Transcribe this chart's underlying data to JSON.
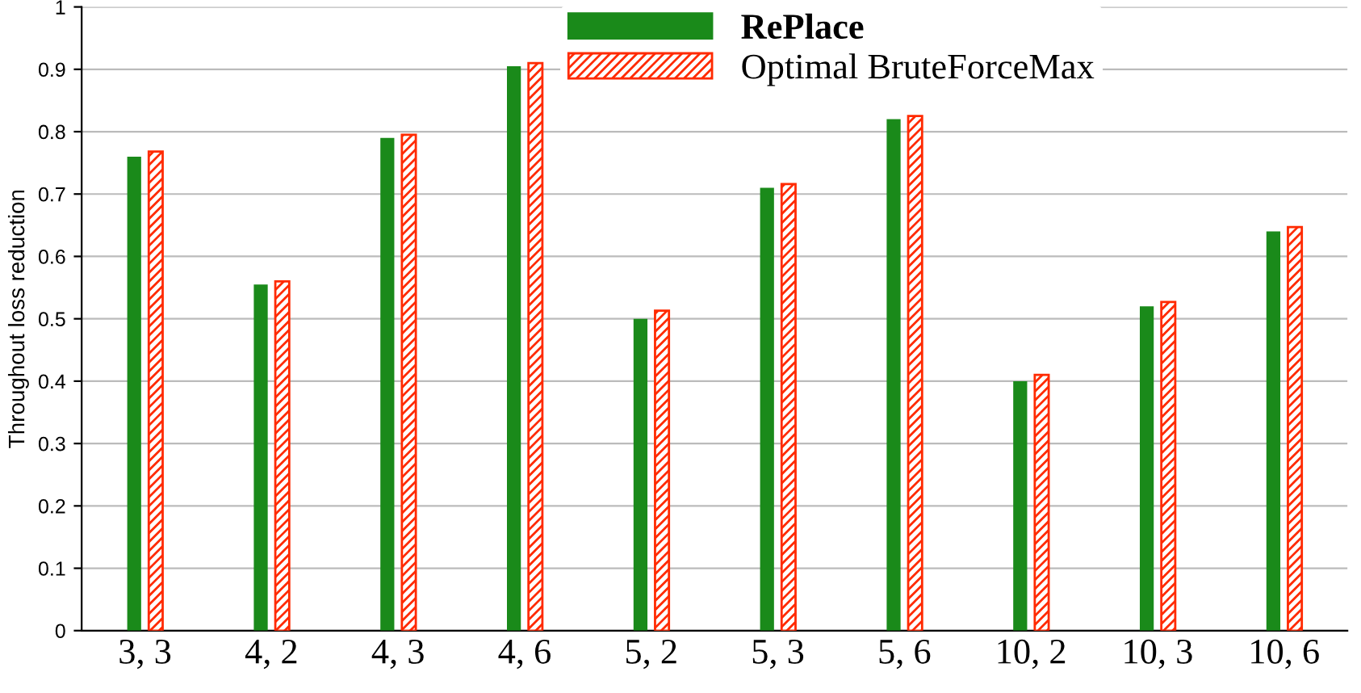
{
  "chart_data": {
    "type": "bar",
    "ylabel": "Throughout loss reduction",
    "categories": [
      "3, 3",
      "4, 2",
      "4, 3",
      "4, 6",
      "5, 2",
      "5, 3",
      "5, 6",
      "10, 2",
      "10, 3",
      "10, 6"
    ],
    "series": [
      {
        "name": "RePlace",
        "color": "#1a8a1a",
        "values": [
          0.76,
          0.555,
          0.79,
          0.905,
          0.5,
          0.71,
          0.82,
          0.4,
          0.52,
          0.64
        ]
      },
      {
        "name": "Optimal BruteForceMax",
        "color": "#ff2a00",
        "values": [
          0.768,
          0.56,
          0.795,
          0.91,
          0.513,
          0.716,
          0.825,
          0.41,
          0.527,
          0.647
        ]
      }
    ],
    "ylim": [
      0,
      1
    ],
    "yticks": [
      0,
      0.1,
      0.2,
      0.3,
      0.4,
      0.5,
      0.6,
      0.7,
      0.8,
      0.9,
      1
    ],
    "grid": "y",
    "legend": "top right"
  }
}
